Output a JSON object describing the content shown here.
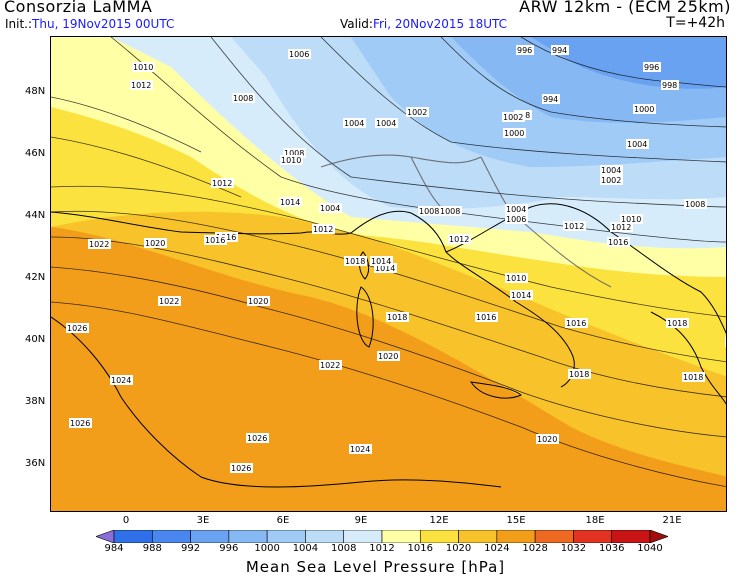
{
  "header": {
    "provider": "Consorzia LaMMA",
    "model": "ARW 12km - (ECM 25km)",
    "init_label": "Init.:",
    "init_value": "Thu, 19Nov2015 00UTC",
    "valid_label": "Valid:",
    "valid_value": "Fri, 20Nov2015 18UTC",
    "timestep": "T=+42h"
  },
  "map": {
    "lat_labels": [
      "48N",
      "46N",
      "44N",
      "42N",
      "40N",
      "38N",
      "36N"
    ],
    "lon_labels": [
      "0",
      "3E",
      "6E",
      "9E",
      "12E",
      "15E",
      "18E",
      "21E"
    ],
    "isobar_labels": [
      "996",
      "994",
      "1006",
      "1010",
      "1012",
      "1008",
      "996",
      "998",
      "994",
      "998",
      "1000",
      "1002",
      "1004",
      "1004",
      "1002",
      "1000",
      "1004",
      "1002",
      "1008",
      "1010",
      "1004",
      "1012",
      "1014",
      "1004",
      "1012",
      "1008",
      "1008",
      "1016",
      "1004",
      "1006",
      "1010",
      "1008",
      "1012",
      "1022",
      "1020",
      "1016",
      "1016",
      "1018",
      "1014",
      "1012",
      "1012",
      "1014",
      "1010",
      "1014",
      "1022",
      "1020",
      "1018",
      "1016",
      "1016",
      "1018",
      "1026",
      "1014",
      "1020",
      "1018",
      "1022",
      "1024",
      "1018",
      "1026",
      "1020",
      "1026",
      "1024",
      "1026"
    ],
    "colors": {
      "land_outline": "#000000",
      "border": "#555555"
    }
  },
  "colorbar": {
    "labels": [
      "984",
      "988",
      "992",
      "996",
      "1000",
      "1004",
      "1008",
      "1012",
      "1016",
      "1020",
      "1024",
      "1028",
      "1032",
      "1036",
      "1040"
    ],
    "colors": [
      "#8a6fd8",
      "#2f6fe8",
      "#4a86ef",
      "#6aa2f2",
      "#86b8f4",
      "#a0cbf6",
      "#bcdcf8",
      "#d7ecfb",
      "#ffffa6",
      "#fbe23e",
      "#f8c22a",
      "#f39e1a",
      "#ee6a22",
      "#e23222",
      "#c81414",
      "#a30c0c"
    ],
    "title": "Mean Sea Level Pressure [hPa]"
  }
}
